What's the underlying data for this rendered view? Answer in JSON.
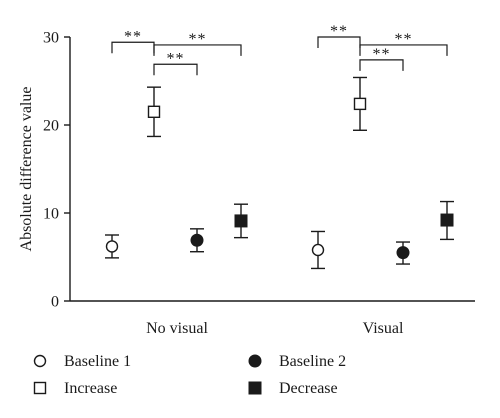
{
  "chart_data": {
    "type": "scatter",
    "ylabel": "Absolute difference value",
    "ylim": [
      0,
      30
    ],
    "yticks": [
      0,
      10,
      20,
      30
    ],
    "categories": [
      "No visual",
      "Visual"
    ],
    "series": [
      {
        "name": "Baseline 1",
        "marker": "circle-open",
        "values": [
          6.2,
          5.8
        ],
        "err_low": [
          4.9,
          3.7
        ],
        "err_high": [
          7.5,
          7.9
        ]
      },
      {
        "name": "Increase",
        "marker": "square-open",
        "values": [
          21.5,
          22.4
        ],
        "err_low": [
          18.7,
          19.4
        ],
        "err_high": [
          24.3,
          25.4
        ]
      },
      {
        "name": "Baseline 2",
        "marker": "circle-filled",
        "values": [
          6.9,
          5.5
        ],
        "err_low": [
          5.6,
          4.2
        ],
        "err_high": [
          8.2,
          6.7
        ]
      },
      {
        "name": "Decrease",
        "marker": "square-filled",
        "values": [
          9.1,
          9.2
        ],
        "err_low": [
          7.2,
          7.0
        ],
        "err_high": [
          11.0,
          11.3
        ]
      }
    ],
    "significance": [
      {
        "category": 0,
        "from": "Baseline 1",
        "to": "Increase",
        "label": "**",
        "level": 29.4
      },
      {
        "category": 0,
        "from": "Increase",
        "to": "Decrease",
        "label": "**",
        "level": 29.1
      },
      {
        "category": 0,
        "from": "Increase",
        "to": "Baseline 2",
        "label": "**",
        "level": 26.9
      },
      {
        "category": 1,
        "from": "Baseline 1",
        "to": "Increase",
        "label": "**",
        "level": 30.0
      },
      {
        "category": 1,
        "from": "Increase",
        "to": "Decrease",
        "label": "**",
        "level": 29.1
      },
      {
        "category": 1,
        "from": "Increase",
        "to": "Baseline 2",
        "label": "**",
        "level": 27.4
      }
    ],
    "legend": {
      "placement": "bottom",
      "items": [
        "Baseline 1",
        "Baseline 2",
        "Increase",
        "Decrease"
      ]
    },
    "grid": false
  }
}
